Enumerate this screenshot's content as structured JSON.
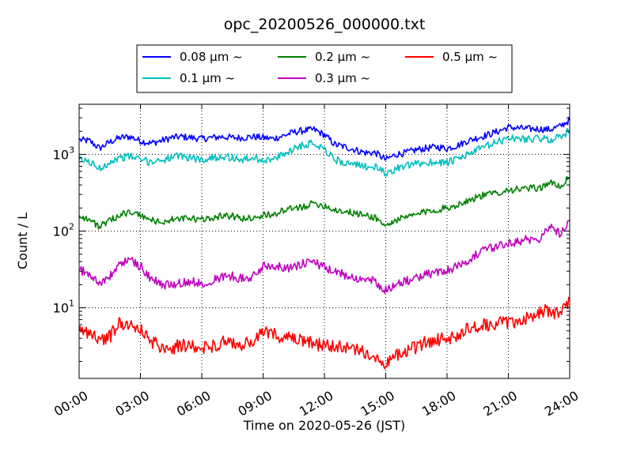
{
  "chart_data": {
    "type": "line",
    "title": "opc_20200526_000000.txt",
    "xlabel": "Time on 2020-05-26 (JST)",
    "ylabel": "Count / L",
    "x_unit": "hours",
    "xlim": [
      0,
      24
    ],
    "ylim": [
      1.2,
      4500
    ],
    "yscale": "log",
    "grid": true,
    "legend_position": "top-center",
    "x_ticks": [
      {
        "value": 0,
        "label": "00:00"
      },
      {
        "value": 3,
        "label": "03:00"
      },
      {
        "value": 6,
        "label": "06:00"
      },
      {
        "value": 9,
        "label": "09:00"
      },
      {
        "value": 12,
        "label": "12:00"
      },
      {
        "value": 15,
        "label": "15:00"
      },
      {
        "value": 18,
        "label": "18:00"
      },
      {
        "value": 21,
        "label": "21:00"
      },
      {
        "value": 24,
        "label": "24:00"
      }
    ],
    "y_ticks": [
      {
        "value": 10,
        "base": "10",
        "exp": "1"
      },
      {
        "value": 100,
        "base": "10",
        "exp": "2"
      },
      {
        "value": 1000,
        "base": "10",
        "exp": "3"
      }
    ],
    "series": [
      {
        "name": "0.08 μm ~",
        "color": "#0000ff",
        "x": [
          0,
          0.5,
          1,
          1.5,
          2,
          2.5,
          3,
          3.5,
          4,
          4.5,
          5,
          5.5,
          6,
          6.5,
          7,
          7.5,
          8,
          8.5,
          9,
          9.5,
          10,
          10.5,
          11,
          11.5,
          12,
          12.5,
          13,
          13.5,
          14,
          14.5,
          15,
          15.5,
          16,
          16.5,
          17,
          17.5,
          18,
          18.5,
          19,
          19.5,
          20,
          20.5,
          21,
          21.5,
          22,
          22.5,
          23,
          23.5,
          24
        ],
        "values": [
          1550,
          1500,
          1200,
          1450,
          1650,
          1700,
          1500,
          1400,
          1500,
          1650,
          1700,
          1650,
          1600,
          1650,
          1700,
          1650,
          1650,
          1700,
          1650,
          1600,
          1750,
          1950,
          2050,
          2100,
          1800,
          1350,
          1250,
          1150,
          1050,
          1050,
          850,
          1000,
          1050,
          1150,
          1200,
          1250,
          1200,
          1300,
          1500,
          1650,
          1800,
          2000,
          2250,
          2200,
          2150,
          2150,
          2100,
          2300,
          2800
        ]
      },
      {
        "name": "0.1 μm ~",
        "color": "#00bfbf",
        "x": [
          0,
          0.5,
          1,
          1.5,
          2,
          2.5,
          3,
          3.5,
          4,
          4.5,
          5,
          5.5,
          6,
          6.5,
          7,
          7.5,
          8,
          8.5,
          9,
          9.5,
          10,
          10.5,
          11,
          11.5,
          12,
          12.5,
          13,
          13.5,
          14,
          14.5,
          15,
          15.5,
          16,
          16.5,
          17,
          17.5,
          18,
          18.5,
          19,
          19.5,
          20,
          20.5,
          21,
          21.5,
          22,
          22.5,
          23,
          23.5,
          24
        ],
        "values": [
          850,
          800,
          650,
          800,
          900,
          950,
          850,
          800,
          850,
          900,
          950,
          900,
          850,
          900,
          950,
          900,
          850,
          900,
          850,
          850,
          1000,
          1200,
          1350,
          1400,
          1200,
          850,
          780,
          720,
          700,
          680,
          560,
          650,
          700,
          750,
          780,
          800,
          780,
          850,
          1000,
          1150,
          1300,
          1450,
          1650,
          1600,
          1600,
          1600,
          1550,
          1700,
          2000
        ]
      },
      {
        "name": "0.2 μm ~",
        "color": "#008000",
        "x": [
          0,
          0.5,
          1,
          1.5,
          2,
          2.5,
          3,
          3.5,
          4,
          4.5,
          5,
          5.5,
          6,
          6.5,
          7,
          7.5,
          8,
          8.5,
          9,
          9.5,
          10,
          10.5,
          11,
          11.5,
          12,
          12.5,
          13,
          13.5,
          14,
          14.5,
          15,
          15.5,
          16,
          16.5,
          17,
          17.5,
          18,
          18.5,
          19,
          19.5,
          20,
          20.5,
          21,
          21.5,
          22,
          22.5,
          23,
          23.5,
          24
        ],
        "values": [
          160,
          140,
          115,
          135,
          165,
          175,
          160,
          140,
          130,
          140,
          145,
          145,
          140,
          150,
          160,
          155,
          145,
          150,
          160,
          165,
          185,
          195,
          210,
          230,
          215,
          190,
          180,
          170,
          160,
          150,
          115,
          140,
          150,
          165,
          180,
          190,
          200,
          220,
          250,
          280,
          300,
          320,
          345,
          350,
          360,
          360,
          430,
          380,
          500
        ]
      },
      {
        "name": "0.3 μm ~",
        "color": "#bf00bf",
        "x": [
          0,
          0.5,
          1,
          1.5,
          2,
          2.5,
          3,
          3.5,
          4,
          4.5,
          5,
          5.5,
          6,
          6.5,
          7,
          7.5,
          8,
          8.5,
          9,
          9.5,
          10,
          10.5,
          11,
          11.5,
          12,
          12.5,
          13,
          13.5,
          14,
          14.5,
          15,
          15.5,
          16,
          16.5,
          17,
          17.5,
          18,
          18.5,
          19,
          19.5,
          20,
          20.5,
          21,
          21.5,
          22,
          22.5,
          23,
          23.5,
          24
        ],
        "values": [
          32,
          27,
          21,
          25,
          38,
          42,
          35,
          24,
          20,
          20,
          21,
          22,
          21,
          23,
          25,
          26,
          24,
          25,
          35,
          36,
          34,
          33,
          38,
          40,
          33,
          29,
          27,
          25,
          23,
          22,
          17,
          20,
          22,
          25,
          27,
          29,
          31,
          35,
          42,
          50,
          58,
          64,
          70,
          74,
          78,
          80,
          115,
          95,
          140
        ]
      },
      {
        "name": "0.5 μm ~",
        "color": "#ff0000",
        "x": [
          0,
          0.5,
          1,
          1.5,
          2,
          2.5,
          3,
          3.5,
          4,
          4.5,
          5,
          5.5,
          6,
          6.5,
          7,
          7.5,
          8,
          8.5,
          9,
          9.5,
          10,
          10.5,
          11,
          11.5,
          12,
          12.5,
          13,
          13.5,
          14,
          14.5,
          15,
          15.5,
          16,
          16.5,
          17,
          17.5,
          18,
          18.5,
          19,
          19.5,
          20,
          20.5,
          21,
          21.5,
          22,
          22.5,
          23,
          23.5,
          24
        ],
        "values": [
          5,
          4.8,
          3.8,
          4.2,
          6.5,
          6,
          5.2,
          3.6,
          3.2,
          3,
          3.2,
          3.1,
          3,
          3.2,
          3.5,
          3.4,
          3.3,
          3.5,
          4.8,
          4.6,
          4.1,
          3.8,
          3.6,
          3.4,
          3.2,
          3.1,
          3,
          2.8,
          2.6,
          2.4,
          1.9,
          2.3,
          2.8,
          3.1,
          3.6,
          3.8,
          4,
          4.5,
          5.2,
          5.6,
          6,
          6.2,
          6.5,
          6.8,
          7.2,
          8.5,
          9.5,
          8,
          13
        ]
      }
    ]
  }
}
